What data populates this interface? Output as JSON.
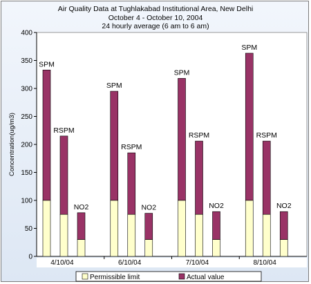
{
  "chart_data": {
    "type": "bar",
    "stacked": true,
    "title": "Air Quality Data at Tughlakabad Institutional Area, New Delhi",
    "subtitle_lines": [
      "October 4 - October 10, 2004",
      "24 hourly average (6 am to 6 am)"
    ],
    "ylabel": "Concentration(ug/m3)",
    "xlabel": "",
    "ylim": [
      0,
      400
    ],
    "yticks": [
      0,
      50,
      100,
      150,
      200,
      250,
      300,
      350,
      400
    ],
    "grid": false,
    "legend_position": "bottom",
    "categories": [
      "4/10/04",
      "6/10/04",
      "7/10/04",
      "8/10/04"
    ],
    "pollutants": [
      "SPM",
      "RSPM",
      "NO2"
    ],
    "series": [
      {
        "name": "Permissible limit",
        "color": "#ffffcc",
        "values": [
          [
            100,
            75,
            30
          ],
          [
            100,
            75,
            30
          ],
          [
            100,
            75,
            30
          ],
          [
            100,
            75,
            30
          ]
        ]
      },
      {
        "name": "Actual value",
        "color": "#993366",
        "values": [
          [
            333,
            215,
            78
          ],
          [
            295,
            185,
            77
          ],
          [
            318,
            206,
            80
          ],
          [
            363,
            206,
            80
          ]
        ]
      }
    ]
  }
}
